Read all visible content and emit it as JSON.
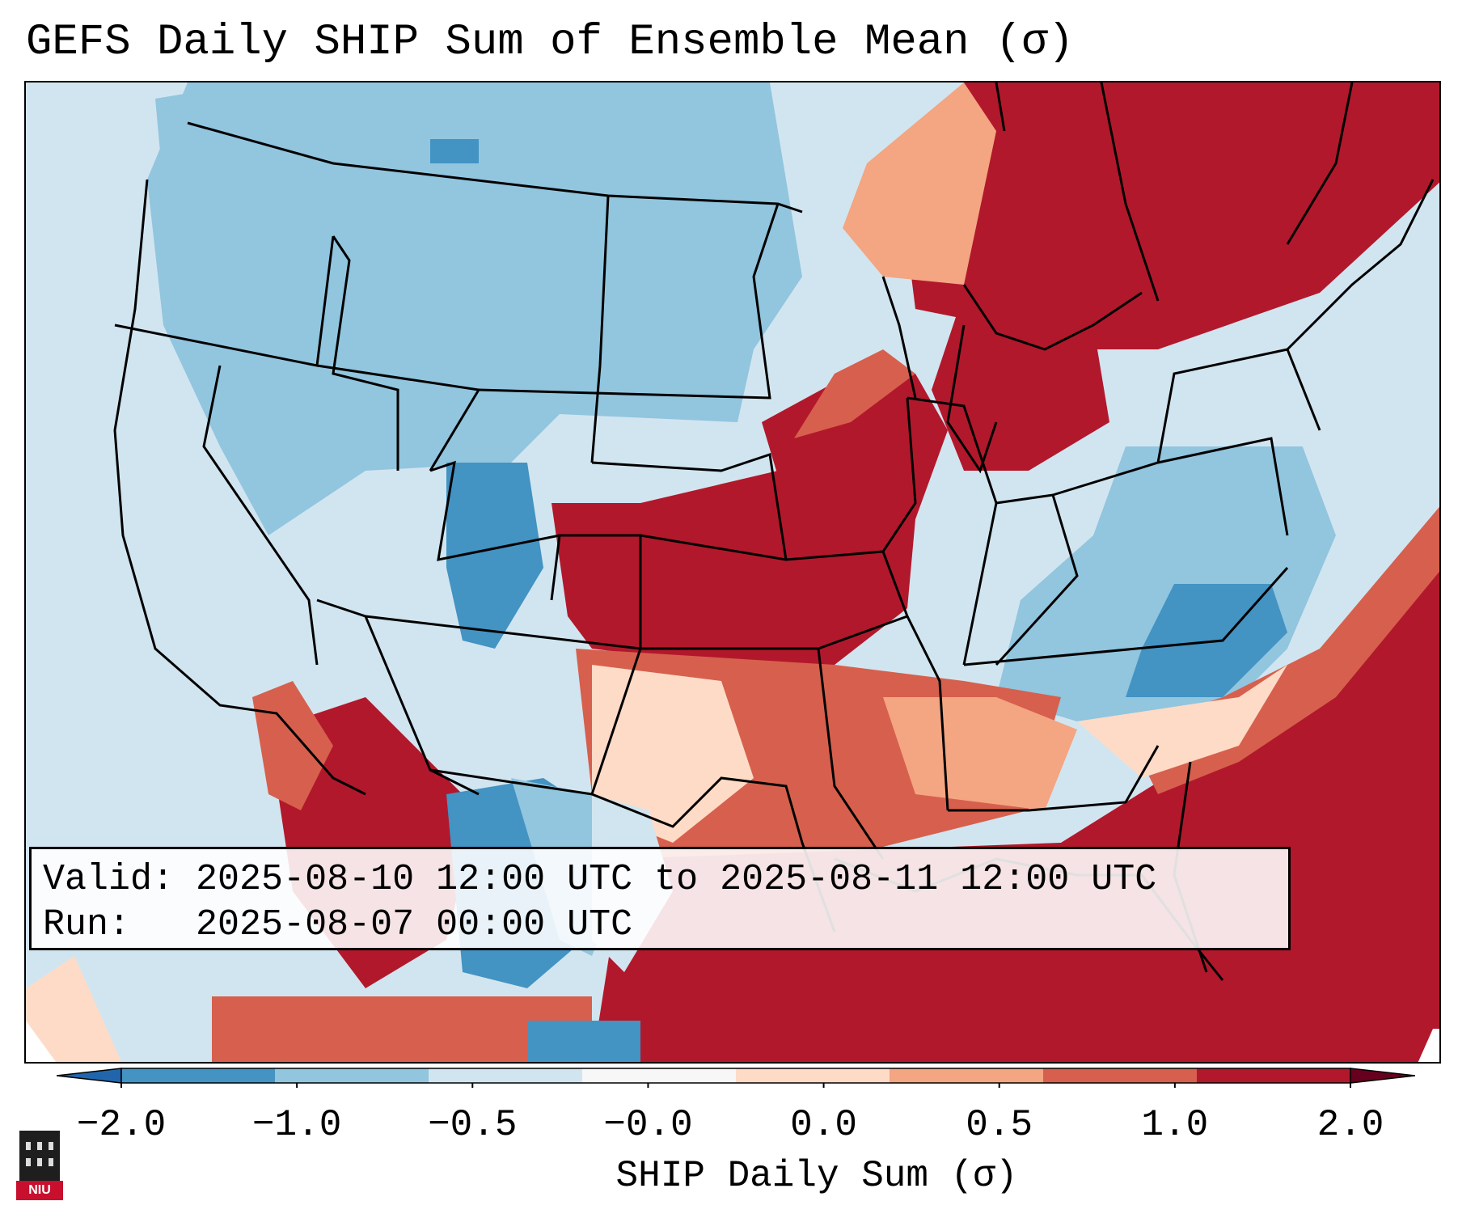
{
  "title": "GEFS Daily SHIP Sum of Ensemble Mean (σ)",
  "info": {
    "valid_label": "Valid:",
    "valid_value": "2025-08-10 12:00 UTC to 2025-08-11 12:00 UTC",
    "run_label": "Run:",
    "run_value": "2025-08-07 00:00 UTC"
  },
  "colorbar": {
    "label": "SHIP Daily Sum (σ)",
    "ticks": [
      "−2.0",
      "−1.0",
      "−0.5",
      "−0.0",
      "0.0",
      "0.5",
      "1.0",
      "2.0"
    ],
    "colors": [
      "#4393c3",
      "#92c5de",
      "#d1e5f0",
      "#f7f7f7",
      "#fddbc7",
      "#f4a582",
      "#d6604d",
      "#b2182b"
    ],
    "under_color": "#2166ac",
    "over_color": "#67001f"
  },
  "logo": {
    "text": "NIU"
  },
  "map": {
    "region": "Contiguous United States",
    "field": "SHIP daily sum standardized anomaly"
  }
}
